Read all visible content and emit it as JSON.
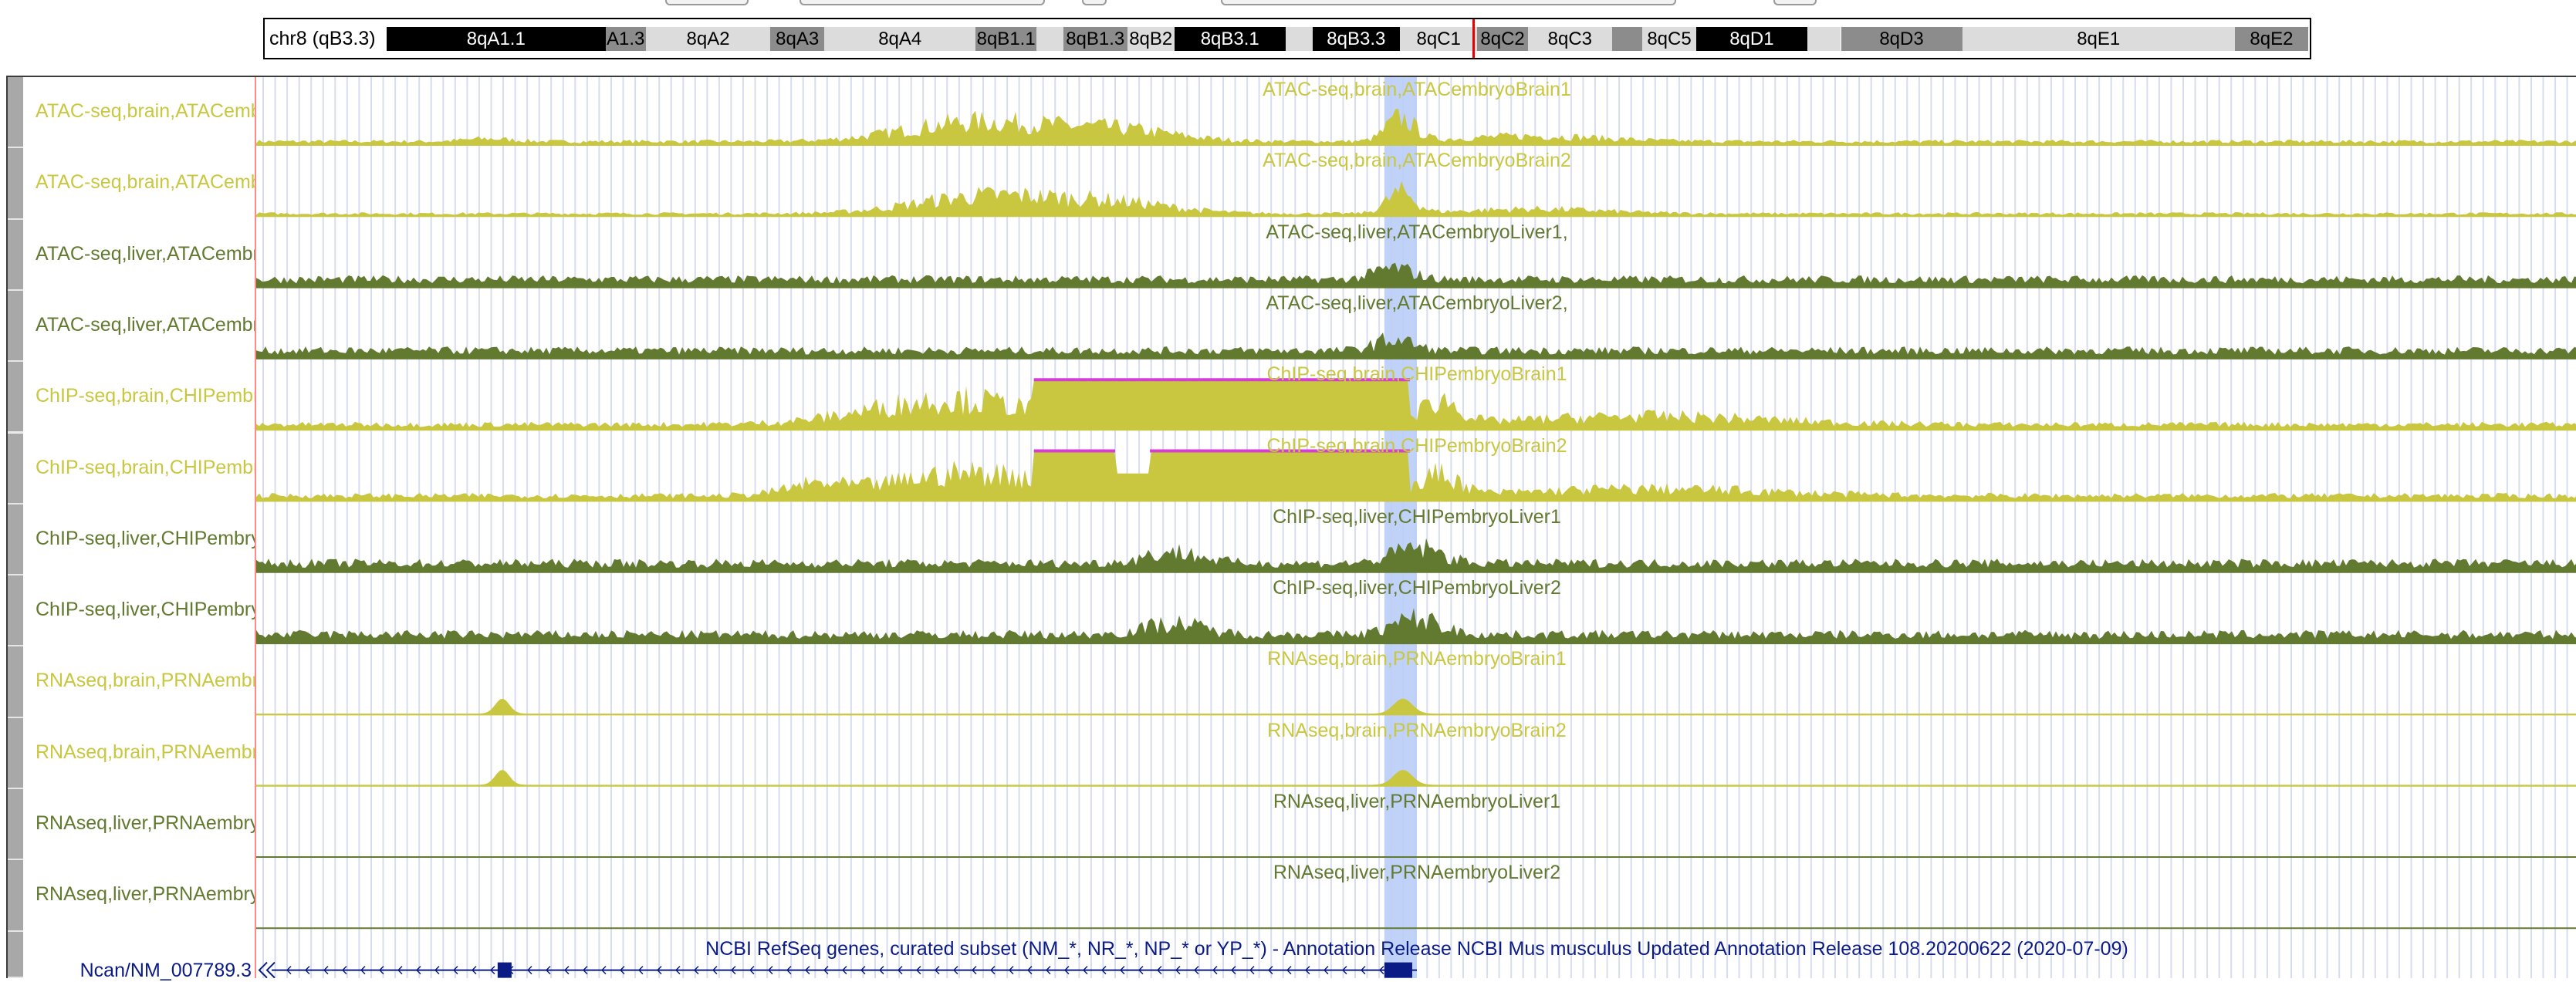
{
  "ideogram": {
    "label": "chr8 (qB3.3)",
    "bands": [
      {
        "name": "8qA1.1",
        "start": 0,
        "end": 325,
        "stain": "black"
      },
      {
        "name": "A1.3",
        "start": 325,
        "end": 385,
        "stain": "gray"
      },
      {
        "name": "8qA2",
        "start": 385,
        "end": 570,
        "stain": "light"
      },
      {
        "name": "8qA3",
        "start": 570,
        "end": 650,
        "stain": "gray"
      },
      {
        "name": "8qA4",
        "start": 650,
        "end": 875,
        "stain": "light"
      },
      {
        "name": "8qB1.1",
        "start": 875,
        "end": 965,
        "stain": "gray"
      },
      {
        "name": "",
        "start": 965,
        "end": 1005,
        "stain": "light"
      },
      {
        "name": "8qB1.3",
        "start": 1005,
        "end": 1100,
        "stain": "gray"
      },
      {
        "name": "8qB2",
        "start": 1100,
        "end": 1170,
        "stain": "light"
      },
      {
        "name": "8qB3.1",
        "start": 1170,
        "end": 1335,
        "stain": "black"
      },
      {
        "name": "",
        "start": 1335,
        "end": 1375,
        "stain": "light"
      },
      {
        "name": "8qB3.3",
        "start": 1375,
        "end": 1505,
        "stain": "black"
      },
      {
        "name": "8qC1",
        "start": 1505,
        "end": 1620,
        "stain": "light"
      },
      {
        "name": "8qC2",
        "start": 1620,
        "end": 1695,
        "stain": "gray"
      },
      {
        "name": "8qC3",
        "start": 1695,
        "end": 1820,
        "stain": "light"
      },
      {
        "name": "",
        "start": 1820,
        "end": 1865,
        "stain": "gray"
      },
      {
        "name": "8qC5",
        "start": 1865,
        "end": 1945,
        "stain": "light"
      },
      {
        "name": "8qD1",
        "start": 1945,
        "end": 2110,
        "stain": "black"
      },
      {
        "name": "",
        "start": 2110,
        "end": 2160,
        "stain": "light"
      },
      {
        "name": "8qD3",
        "start": 2160,
        "end": 2340,
        "stain": "gray"
      },
      {
        "name": "8qE1",
        "start": 2340,
        "end": 2745,
        "stain": "light"
      },
      {
        "name": "8qE2",
        "start": 2745,
        "end": 2854,
        "stain": "gray"
      }
    ],
    "position_fraction": 0.565
  },
  "colors": {
    "brain": "#c9c73f",
    "liver": "#627a30",
    "clip": "#d63cd6",
    "highlight": "#b9cdf7",
    "gene": "#0b1b86",
    "grid": "#d8dcf0"
  },
  "tracks": [
    {
      "label": "ATAC-seq,brain,ATACembryoBrain1",
      "title": "ATAC-seq,brain,ATACembryoBrain1",
      "color_key": "brain",
      "profile": "atac_brain_1"
    },
    {
      "label": "ATAC-seq,brain,ATACembryoBrain2",
      "title": "ATAC-seq,brain,ATACembryoBrain2",
      "color_key": "brain",
      "profile": "atac_brain_2"
    },
    {
      "label": "ATAC-seq,liver,ATACembryoLiver1,",
      "title": "ATAC-seq,liver,ATACembryoLiver1,",
      "color_key": "liver",
      "profile": "atac_liver"
    },
    {
      "label": "ATAC-seq,liver,ATACembryoLiver2,",
      "title": "ATAC-seq,liver,ATACembryoLiver2,",
      "color_key": "liver",
      "profile": "atac_liver"
    },
    {
      "label": "ChIP-seq,brain,CHIPembryoBrain1",
      "title": "ChIP-seq,brain,CHIPembryoBrain1",
      "color_key": "brain",
      "profile": "chip_brain_1"
    },
    {
      "label": "ChIP-seq,brain,CHIPembryoBrain2",
      "title": "ChIP-seq,brain,CHIPembryoBrain2",
      "color_key": "brain",
      "profile": "chip_brain_2"
    },
    {
      "label": "ChIP-seq,liver,CHIPembryoLiver1",
      "title": "ChIP-seq,liver,CHIPembryoLiver1",
      "color_key": "liver",
      "profile": "chip_liver"
    },
    {
      "label": "ChIP-seq,liver,CHIPembryoLiver2",
      "title": "ChIP-seq,liver,CHIPembryoLiver2",
      "color_key": "liver",
      "profile": "chip_liver"
    },
    {
      "label": "RNAseq,brain,PRNAembryoBrain1",
      "title": "RNAseq,brain,PRNAembryoBrain1",
      "color_key": "brain",
      "profile": "rna_brain"
    },
    {
      "label": "RNAseq,brain,PRNAembryoBrain2",
      "title": "RNAseq,brain,PRNAembryoBrain2",
      "color_key": "brain",
      "profile": "rna_brain"
    },
    {
      "label": "RNAseq,liver,PRNAembryoLiver1",
      "title": "RNAseq,liver,PRNAembryoLiver1",
      "color_key": "liver",
      "profile": "rna_liver"
    },
    {
      "label": "RNAseq,liver,PRNAembryoLiver2",
      "title": "RNAseq,liver,PRNAembryoLiver2",
      "color_key": "liver",
      "profile": "rna_liver"
    }
  ],
  "refseq": {
    "title": "NCBI RefSeq genes, curated subset (NM_*, NR_*, NP_* or YP_*) - Annotation Release NCBI Mus musculus Updated Annotation Release 108.20200622 (2020-07-09)",
    "gene_label": "Ncan/NM_007789.3"
  },
  "view": {
    "highlight_fraction": [
      0.486,
      0.5
    ],
    "exon_fractions": [
      [
        0.104,
        0.11
      ],
      [
        0.486,
        0.498
      ]
    ]
  }
}
